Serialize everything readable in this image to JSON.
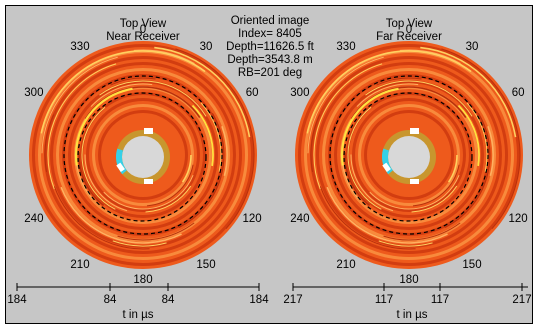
{
  "chart_data": [
    {
      "type": "polar-image",
      "title": [
        "Top View",
        "Near Receiver"
      ],
      "angle_labels": [
        "0",
        "30",
        "60",
        "120",
        "150",
        "180",
        "210",
        "240",
        "300",
        "330"
      ],
      "xaxis": {
        "ticks": [
          "184",
          "84",
          "84",
          "184"
        ],
        "label": "t in µs"
      }
    },
    {
      "type": "polar-image",
      "title": [
        "Top View",
        "Far Receiver"
      ],
      "angle_labels": [
        "0",
        "30",
        "60",
        "120",
        "150",
        "180",
        "210",
        "240",
        "300",
        "330"
      ],
      "xaxis": {
        "ticks": [
          "217",
          "117",
          "117",
          "217"
        ],
        "label": "t in µs"
      }
    }
  ],
  "info": {
    "lines": [
      "Oriented image",
      "Index= 8405",
      "Depth=11626.5 ft",
      "Depth=3543.8 m",
      "RB=201 deg"
    ]
  },
  "colors": {
    "background": "#c6c6c6",
    "image_base": "#ee5a1c",
    "image_dark": "#d23d10",
    "image_light": "#f88a3c",
    "borehole_ring": "#c8962e",
    "marker_white": "#ffffff",
    "marker_cyan": "#35d0e8"
  }
}
